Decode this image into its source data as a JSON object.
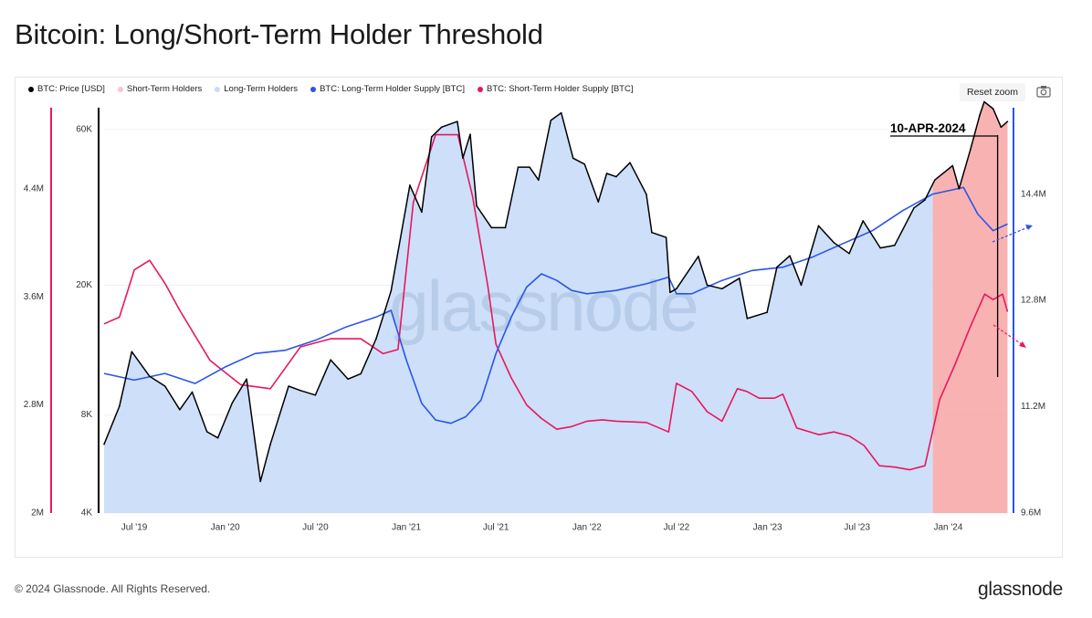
{
  "page_title": "Bitcoin: Long/Short-Term Holder Threshold",
  "reset_zoom_label": "Reset zoom",
  "footer": {
    "copyright": "© 2024 Glassnode. All Rights Reserved.",
    "logo": "glassnode"
  },
  "watermark": "glassnode",
  "colors": {
    "price": "#000000",
    "sth_area": "#f8a5a5",
    "lth_area": "#c8dcf8",
    "lth_supply": "#2a55e6",
    "sth_supply": "#e8175d"
  },
  "chart_data": {
    "type": "line",
    "title": "Bitcoin: Long/Short-Term Holder Threshold",
    "legend": [
      {
        "key": "price",
        "label": "BTC: Price [USD]",
        "color": "#000000"
      },
      {
        "key": "sth_area",
        "label": "Short-Term Holders",
        "color": "#f7c6cf"
      },
      {
        "key": "lth_area",
        "label": "Long-Term Holders",
        "color": "#c8dcf8"
      },
      {
        "key": "lth_supply",
        "label": "BTC: Long-Term Holder Supply [BTC]",
        "color": "#2a55e6"
      },
      {
        "key": "sth_supply",
        "label": "BTC: Short-Term Holder Supply [BTC]",
        "color": "#e8175d"
      }
    ],
    "x_range": [
      "2019-05-01",
      "2024-05-01"
    ],
    "x_ticks": [
      "Jul '19",
      "Jan '20",
      "Jul '20",
      "Jan '21",
      "Jul '21",
      "Jan '22",
      "Jul '22",
      "Jan '23",
      "Jul '23",
      "Jan '24"
    ],
    "x_tick_dates": [
      "2019-07-01",
      "2020-01-01",
      "2020-07-01",
      "2021-01-01",
      "2021-07-01",
      "2022-01-01",
      "2022-07-01",
      "2023-01-01",
      "2023-07-01",
      "2024-01-01"
    ],
    "price_axis": {
      "scale": "log",
      "range": [
        4000,
        70000
      ],
      "ticks": [
        4000,
        8000,
        20000,
        60000
      ],
      "tick_labels": [
        "4K",
        "8K",
        "20K",
        "60K"
      ]
    },
    "sth_axis": {
      "range": [
        2000000,
        5000000
      ],
      "ticks": [
        2000000,
        2800000,
        3600000,
        4400000
      ],
      "tick_labels": [
        "2M",
        "2.8M",
        "3.6M",
        "4.4M"
      ]
    },
    "lth_axis": {
      "range": [
        9600000,
        15700000
      ],
      "ticks": [
        9600000,
        11200000,
        12800000,
        14400000
      ],
      "tick_labels": [
        "9.6M",
        "11.2M",
        "12.8M",
        "14.4M"
      ]
    },
    "annotation": {
      "label": "10-APR-2024",
      "date": "2024-04-10"
    },
    "sth_shading_start": "2023-12-01",
    "series": [
      {
        "name": "BTC: Price [USD]",
        "key": "price",
        "axis": "price",
        "x": [
          "2019-05-01",
          "2019-06-01",
          "2019-06-26",
          "2019-08-01",
          "2019-09-01",
          "2019-10-01",
          "2019-10-26",
          "2019-11-25",
          "2019-12-17",
          "2020-01-15",
          "2020-02-13",
          "2020-03-12",
          "2020-04-01",
          "2020-05-08",
          "2020-06-01",
          "2020-07-01",
          "2020-08-01",
          "2020-09-05",
          "2020-10-01",
          "2020-11-01",
          "2020-12-01",
          "2021-01-08",
          "2021-02-01",
          "2021-02-21",
          "2021-03-13",
          "2021-04-14",
          "2021-04-25",
          "2021-05-10",
          "2021-05-23",
          "2021-06-22",
          "2021-07-20",
          "2021-08-15",
          "2021-09-07",
          "2021-09-25",
          "2021-10-20",
          "2021-11-10",
          "2021-12-04",
          "2021-12-27",
          "2022-01-24",
          "2022-02-10",
          "2022-03-01",
          "2022-03-29",
          "2022-05-01",
          "2022-05-12",
          "2022-06-10",
          "2022-06-18",
          "2022-07-01",
          "2022-08-14",
          "2022-09-01",
          "2022-10-01",
          "2022-11-05",
          "2022-11-21",
          "2022-12-31",
          "2023-01-20",
          "2023-02-15",
          "2023-03-10",
          "2023-04-14",
          "2023-05-15",
          "2023-06-15",
          "2023-07-13",
          "2023-08-17",
          "2023-09-15",
          "2023-10-24",
          "2023-11-15",
          "2023-12-05",
          "2024-01-10",
          "2024-01-23",
          "2024-02-15",
          "2024-03-05",
          "2024-03-14",
          "2024-04-01",
          "2024-04-17",
          "2024-04-30"
        ],
        "values": [
          6500,
          8500,
          12500,
          10500,
          9800,
          8300,
          9400,
          7100,
          6800,
          8700,
          10300,
          5000,
          6500,
          9800,
          9500,
          9200,
          11800,
          10300,
          10700,
          13700,
          19200,
          40500,
          33500,
          57000,
          61000,
          63500,
          49000,
          58000,
          35000,
          30000,
          30000,
          46000,
          46000,
          42000,
          64000,
          67500,
          49000,
          47000,
          36000,
          44000,
          43000,
          47500,
          38000,
          29000,
          28000,
          19000,
          19500,
          24500,
          20000,
          19500,
          21000,
          15800,
          16500,
          22700,
          24600,
          20000,
          30400,
          27000,
          25000,
          31500,
          26000,
          26500,
          34500,
          36500,
          42000,
          46500,
          39500,
          52000,
          66500,
          73000,
          69500,
          61000,
          63500
        ]
      },
      {
        "name": "BTC: Short-Term Holder Supply [BTC]",
        "key": "sth_supply",
        "axis": "sth",
        "x": [
          "2019-05-01",
          "2019-06-01",
          "2019-07-01",
          "2019-08-01",
          "2019-09-01",
          "2019-10-01",
          "2019-12-01",
          "2020-02-01",
          "2020-04-01",
          "2020-06-01",
          "2020-08-01",
          "2020-10-01",
          "2020-11-15",
          "2020-12-15",
          "2021-01-15",
          "2021-03-01",
          "2021-04-15",
          "2021-05-15",
          "2021-06-15",
          "2021-07-01",
          "2021-08-01",
          "2021-09-01",
          "2021-10-01",
          "2021-11-01",
          "2021-12-01",
          "2022-01-01",
          "2022-02-01",
          "2022-03-01",
          "2022-05-01",
          "2022-06-15",
          "2022-07-01",
          "2022-08-01",
          "2022-09-01",
          "2022-10-01",
          "2022-11-01",
          "2022-11-20",
          "2022-12-15",
          "2023-01-15",
          "2023-02-01",
          "2023-03-01",
          "2023-04-15",
          "2023-05-15",
          "2023-06-15",
          "2023-07-15",
          "2023-08-15",
          "2023-09-15",
          "2023-10-15",
          "2023-11-15",
          "2023-12-15",
          "2024-01-15",
          "2024-02-15",
          "2024-03-15",
          "2024-04-01",
          "2024-04-20",
          "2024-04-30"
        ],
        "values": [
          3400000,
          3450000,
          3800000,
          3870000,
          3700000,
          3500000,
          3130000,
          2950000,
          2920000,
          3230000,
          3290000,
          3290000,
          3180000,
          3210000,
          4300000,
          4800000,
          4800000,
          4340000,
          3670000,
          3250000,
          3000000,
          2800000,
          2700000,
          2620000,
          2640000,
          2680000,
          2690000,
          2680000,
          2670000,
          2600000,
          2960000,
          2900000,
          2750000,
          2680000,
          2920000,
          2900000,
          2850000,
          2850000,
          2880000,
          2630000,
          2580000,
          2600000,
          2570000,
          2500000,
          2350000,
          2340000,
          2320000,
          2350000,
          2840000,
          3100000,
          3380000,
          3620000,
          3580000,
          3620000,
          3490000
        ]
      },
      {
        "name": "BTC: Long-Term Holder Supply [BTC]",
        "key": "lth_supply",
        "axis": "lth",
        "x": [
          "2019-05-01",
          "2019-07-01",
          "2019-09-01",
          "2019-11-01",
          "2020-01-01",
          "2020-03-01",
          "2020-05-01",
          "2020-07-01",
          "2020-09-01",
          "2020-11-01",
          "2020-12-01",
          "2021-01-01",
          "2021-02-01",
          "2021-03-01",
          "2021-04-01",
          "2021-05-01",
          "2021-06-01",
          "2021-07-01",
          "2021-08-01",
          "2021-09-01",
          "2021-10-01",
          "2021-11-01",
          "2021-12-01",
          "2022-01-01",
          "2022-03-01",
          "2022-05-01",
          "2022-06-15",
          "2022-07-01",
          "2022-08-01",
          "2022-10-01",
          "2022-12-01",
          "2023-02-01",
          "2023-04-01",
          "2023-06-01",
          "2023-08-01",
          "2023-10-01",
          "2023-12-01",
          "2024-01-01",
          "2024-02-01",
          "2024-03-01",
          "2024-04-01",
          "2024-04-30"
        ],
        "values": [
          11700000,
          11600000,
          11700000,
          11550000,
          11800000,
          12000000,
          12050000,
          12200000,
          12400000,
          12550000,
          12650000,
          11900000,
          11250000,
          11000000,
          10950000,
          11050000,
          11300000,
          12000000,
          12550000,
          13000000,
          13200000,
          13100000,
          12950000,
          12900000,
          12950000,
          13050000,
          13150000,
          12900000,
          12900000,
          13100000,
          13250000,
          13300000,
          13450000,
          13650000,
          13850000,
          14150000,
          14400000,
          14450000,
          14500000,
          14100000,
          13850000,
          13950000
        ]
      }
    ]
  }
}
